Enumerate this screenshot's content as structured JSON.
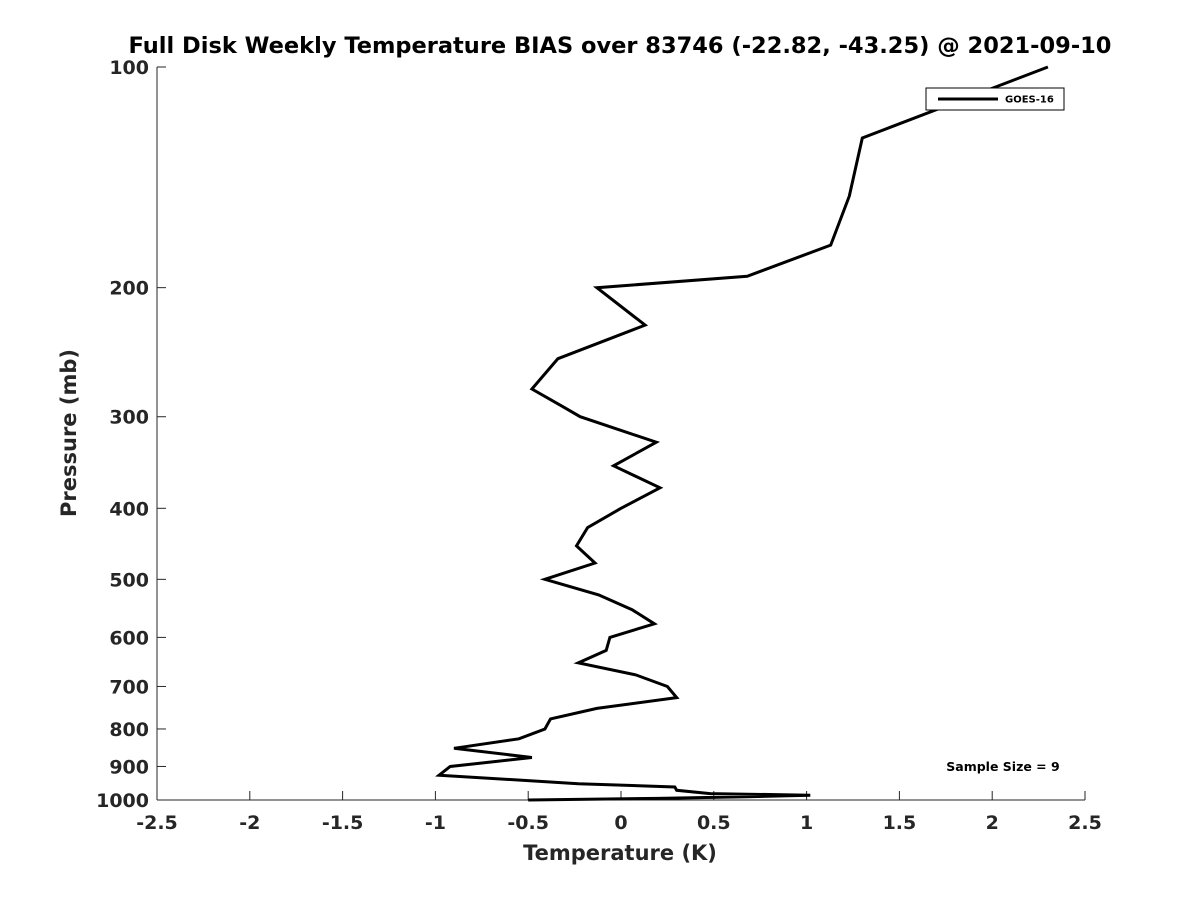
{
  "chart_data": {
    "type": "line",
    "title": "Full Disk Weekly Temperature BIAS over 83746 (-22.82, -43.25) @ 2021-09-10",
    "xlabel": "Temperature (K)",
    "ylabel": "Pressure (mb)",
    "xlim": [
      -2.5,
      2.5
    ],
    "ylim": [
      100,
      1000
    ],
    "y_scale": "log",
    "y_reversed": true,
    "grid": false,
    "legend_position": "top-right",
    "x_ticks": [
      "-2.5",
      "-2",
      "-1.5",
      "-1",
      "-0.5",
      "0",
      "0.5",
      "1",
      "1.5",
      "2",
      "2.5"
    ],
    "x_tick_values": [
      -2.5,
      -2,
      -1.5,
      -1,
      -0.5,
      0,
      0.5,
      1,
      1.5,
      2,
      2.5
    ],
    "y_ticks": [
      "100",
      "200",
      "300",
      "400",
      "500",
      "600",
      "700",
      "800",
      "900",
      "1000"
    ],
    "y_tick_values": [
      100,
      200,
      300,
      400,
      500,
      600,
      700,
      800,
      900,
      1000
    ],
    "annotation": "Sample Size = 9",
    "series": [
      {
        "name": "GOES-16",
        "color": "#000000",
        "points": [
          {
            "x": 2.3,
            "p": 100
          },
          {
            "x": 1.3,
            "p": 125
          },
          {
            "x": 1.23,
            "p": 150
          },
          {
            "x": 1.13,
            "p": 175
          },
          {
            "x": 0.68,
            "p": 193
          },
          {
            "x": -0.13,
            "p": 200
          },
          {
            "x": 0.13,
            "p": 225
          },
          {
            "x": -0.34,
            "p": 250
          },
          {
            "x": -0.48,
            "p": 275
          },
          {
            "x": -0.32,
            "p": 290
          },
          {
            "x": -0.22,
            "p": 300
          },
          {
            "x": 0.19,
            "p": 325
          },
          {
            "x": -0.04,
            "p": 350
          },
          {
            "x": 0.21,
            "p": 375
          },
          {
            "x": 0.0,
            "p": 400
          },
          {
            "x": -0.18,
            "p": 425
          },
          {
            "x": -0.24,
            "p": 450
          },
          {
            "x": -0.14,
            "p": 475
          },
          {
            "x": -0.41,
            "p": 500
          },
          {
            "x": -0.12,
            "p": 525
          },
          {
            "x": 0.06,
            "p": 550
          },
          {
            "x": 0.18,
            "p": 575
          },
          {
            "x": -0.06,
            "p": 600
          },
          {
            "x": -0.08,
            "p": 625
          },
          {
            "x": -0.23,
            "p": 650
          },
          {
            "x": 0.08,
            "p": 675
          },
          {
            "x": 0.25,
            "p": 700
          },
          {
            "x": 0.3,
            "p": 725
          },
          {
            "x": -0.13,
            "p": 750
          },
          {
            "x": -0.38,
            "p": 775
          },
          {
            "x": -0.41,
            "p": 800
          },
          {
            "x": -0.55,
            "p": 825
          },
          {
            "x": -0.9,
            "p": 850
          },
          {
            "x": -0.48,
            "p": 875
          },
          {
            "x": -0.92,
            "p": 900
          },
          {
            "x": -0.98,
            "p": 925
          },
          {
            "x": -0.23,
            "p": 950
          },
          {
            "x": 0.29,
            "p": 960
          },
          {
            "x": 0.3,
            "p": 970
          },
          {
            "x": 0.48,
            "p": 980
          },
          {
            "x": 1.02,
            "p": 985
          },
          {
            "x": 0.68,
            "p": 990
          },
          {
            "x": 0.2,
            "p": 995
          },
          {
            "x": -0.5,
            "p": 1000
          }
        ]
      }
    ]
  }
}
